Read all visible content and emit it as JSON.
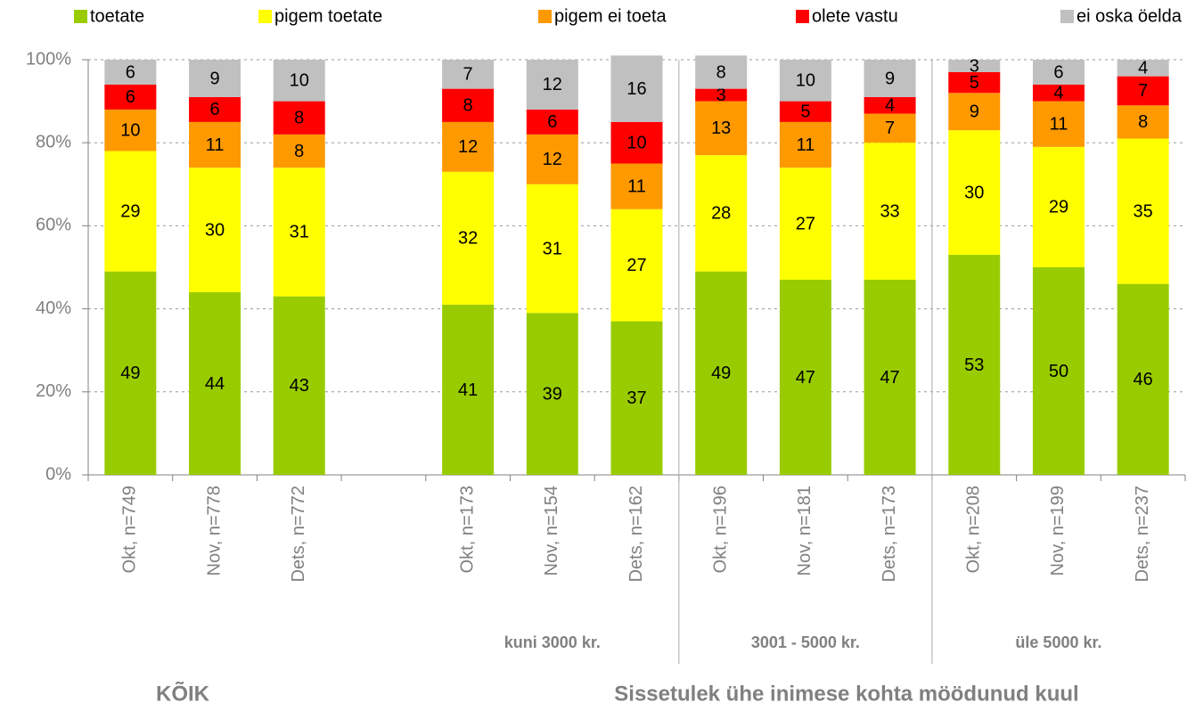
{
  "chart_data": {
    "type": "stacked_bar",
    "categories": [
      "Okt, n=749",
      "Nov, n=778",
      "Dets, n=772",
      null,
      "Okt, n=173",
      "Nov, n=154",
      "Dets, n=162",
      "Okt, n=196",
      "Nov, n=181",
      "Dets, n=173",
      "Okt, n=208",
      "Nov, n=199",
      "Dets, n=237"
    ],
    "series": [
      {
        "name": "toetate",
        "color": "#99cc00",
        "values": [
          49,
          44,
          43,
          null,
          41,
          39,
          37,
          49,
          47,
          47,
          53,
          50,
          46
        ]
      },
      {
        "name": "pigem toetate",
        "color": "#ffff00",
        "values": [
          29,
          30,
          31,
          null,
          32,
          31,
          27,
          28,
          27,
          33,
          30,
          29,
          35
        ]
      },
      {
        "name": "pigem ei toeta",
        "color": "#ff9900",
        "values": [
          10,
          11,
          8,
          null,
          12,
          12,
          11,
          13,
          11,
          7,
          9,
          11,
          8
        ]
      },
      {
        "name": "olete vastu",
        "color": "#ff0000",
        "values": [
          6,
          6,
          8,
          null,
          8,
          6,
          10,
          3,
          5,
          4,
          5,
          4,
          7
        ]
      },
      {
        "name": "ei oska öelda",
        "color": "#c0c0c0",
        "values": [
          6,
          9,
          10,
          null,
          7,
          12,
          16,
          8,
          10,
          9,
          3,
          6,
          4
        ]
      }
    ],
    "ylim": [
      0,
      100
    ],
    "yticks": [
      {
        "value": 0,
        "label": "0%"
      },
      {
        "value": 20,
        "label": "20%"
      },
      {
        "value": 40,
        "label": "40%"
      },
      {
        "value": 60,
        "label": "60%"
      },
      {
        "value": 80,
        "label": "80%"
      },
      {
        "value": 100,
        "label": "100%"
      }
    ],
    "grid": true,
    "legend": "top",
    "annotations": [
      "kuni 3000 kr.",
      "3001 - 5000 kr.",
      "üle 5000 kr.",
      "KÕIK",
      "Sissetulek ühe inimese kohta möödunud kuul"
    ]
  }
}
